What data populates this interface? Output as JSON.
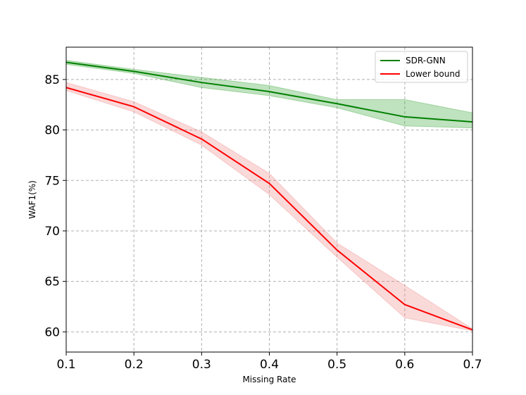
{
  "chart_data": {
    "type": "line",
    "title": "",
    "xlabel": "Missing Rate",
    "ylabel": "WAF1(%)",
    "x": [
      0.1,
      0.2,
      0.3,
      0.4,
      0.5,
      0.6,
      0.7
    ],
    "xticks": [
      "0.1",
      "0.2",
      "0.3",
      "0.4",
      "0.5",
      "0.6",
      "0.7"
    ],
    "yticks": [
      "60",
      "65",
      "70",
      "75",
      "80",
      "85"
    ],
    "yticks_values": [
      60,
      65,
      70,
      75,
      80,
      85
    ],
    "xlim": [
      0.1,
      0.7
    ],
    "ylim": [
      58.0,
      88.2
    ],
    "grid": true,
    "legend_position": "top-right",
    "series": [
      {
        "name": "SDR-GNN",
        "color": "#008000",
        "band_color": "#2ca02c",
        "values": [
          86.7,
          85.8,
          84.7,
          83.8,
          82.6,
          81.3,
          80.8
        ],
        "lower": [
          86.5,
          85.6,
          84.2,
          83.4,
          82.2,
          80.4,
          80.2
        ],
        "upper": [
          86.9,
          86.0,
          85.2,
          84.4,
          83.0,
          83.0,
          81.7
        ]
      },
      {
        "name": "Lower bound",
        "color": "#ff0000",
        "band_color": "#f08080",
        "values": [
          84.2,
          82.3,
          79.1,
          74.7,
          68.1,
          62.7,
          60.2
        ],
        "lower": [
          83.9,
          81.8,
          78.5,
          73.6,
          67.4,
          61.4,
          60.1
        ],
        "upper": [
          84.7,
          82.8,
          79.8,
          75.7,
          68.8,
          64.6,
          60.3
        ]
      }
    ]
  }
}
